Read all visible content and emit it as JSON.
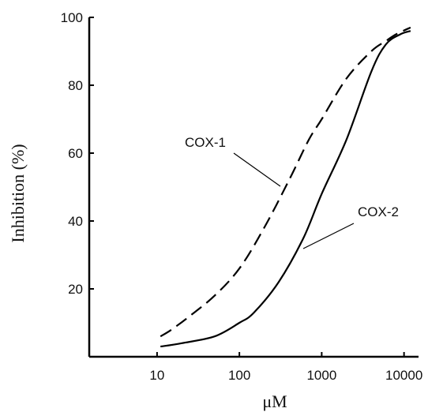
{
  "chart_data": {
    "type": "line",
    "xlabel": "μM",
    "ylabel": "Inhibition (%)",
    "xscale": "log",
    "xlim": [
      1.5,
      15000
    ],
    "ylim": [
      0,
      100
    ],
    "x_ticks": [
      10,
      100,
      1000,
      10000
    ],
    "x_tick_labels": [
      "10",
      "100",
      "1000",
      "10000"
    ],
    "y_ticks": [
      20,
      40,
      60,
      80,
      100
    ],
    "y_tick_labels": [
      "20",
      "40",
      "60",
      "80",
      "100"
    ],
    "grid": false,
    "legend": "none",
    "series": [
      {
        "name": "COX-1",
        "style": "dashed",
        "color": "#000000",
        "x": [
          11,
          15,
          25,
          50,
          100,
          200,
          400,
          700,
          1000,
          2000,
          4000,
          6000,
          8000,
          12000
        ],
        "y": [
          6,
          8,
          12,
          18,
          26,
          38,
          52,
          64,
          70,
          82,
          90,
          93,
          95,
          97
        ]
      },
      {
        "name": "COX-2",
        "style": "solid",
        "color": "#000000",
        "x": [
          11,
          20,
          50,
          100,
          150,
          300,
          600,
          1000,
          2000,
          4000,
          6000,
          9000,
          12000
        ],
        "y": [
          3,
          4,
          6,
          10,
          13,
          22,
          35,
          48,
          64,
          84,
          92,
          95,
          96
        ]
      }
    ],
    "annotations": [
      {
        "text": "COX-1",
        "series": "COX-1"
      },
      {
        "text": "COX-2",
        "series": "COX-2"
      }
    ]
  }
}
